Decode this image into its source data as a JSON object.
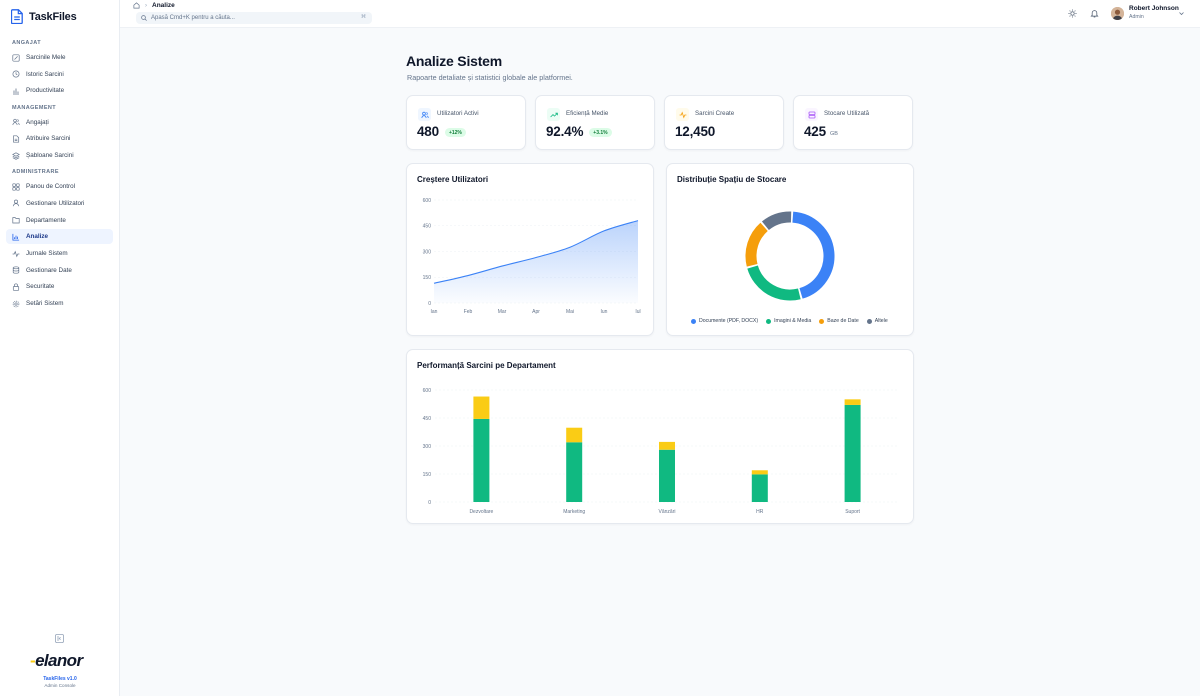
{
  "app": {
    "name": "TaskFiles",
    "version": "TaskFiles v1.0",
    "console": "Admin Console",
    "logo_text": "elanor"
  },
  "sidebar": {
    "sections": [
      {
        "title": "ANGAJAT",
        "items": [
          {
            "label": "Sarcinile Mele",
            "icon": "edit-square-icon"
          },
          {
            "label": "Istoric Sarcini",
            "icon": "history-icon"
          },
          {
            "label": "Productivitate",
            "icon": "bar-chart-icon"
          }
        ]
      },
      {
        "title": "MANAGEMENT",
        "items": [
          {
            "label": "Angajați",
            "icon": "users-icon"
          },
          {
            "label": "Atribuire Sarcini",
            "icon": "file-assign-icon"
          },
          {
            "label": "Șabloane Sarcini",
            "icon": "layers-icon"
          }
        ]
      },
      {
        "title": "ADMINISTRARE",
        "items": [
          {
            "label": "Panou de Control",
            "icon": "grid-icon"
          },
          {
            "label": "Gestionare Utilizatori",
            "icon": "user-icon"
          },
          {
            "label": "Departamente",
            "icon": "folder-icon"
          },
          {
            "label": "Analize",
            "icon": "analytics-icon",
            "active": true
          },
          {
            "label": "Jurnale Sistem",
            "icon": "activity-icon"
          },
          {
            "label": "Gestionare Date",
            "icon": "database-icon"
          },
          {
            "label": "Securitate",
            "icon": "lock-icon"
          },
          {
            "label": "Setări Sistem",
            "icon": "gear-icon"
          }
        ]
      }
    ]
  },
  "header": {
    "breadcrumb_current": "Analize",
    "search_placeholder": "Apasă Cmd+K pentru a căuta...",
    "search_shortcut": "⌘",
    "user_name": "Robert Johnson",
    "user_role": "Admin"
  },
  "page": {
    "title": "Analize Sistem",
    "subtitle": "Rapoarte detaliate și statistici globale ale platformei."
  },
  "stats": [
    {
      "label": "Utilizatori Activi",
      "value": "480",
      "badge": "+12%",
      "icon": "users-icon",
      "color": "#3b82f6",
      "bg": "#eff6ff"
    },
    {
      "label": "Eficiență Medie",
      "value": "92.4%",
      "badge": "+3.1%",
      "icon": "trending-up-icon",
      "color": "#10b981",
      "bg": "#ecfdf5"
    },
    {
      "label": "Sarcini Create",
      "value": "12,450",
      "icon": "activity-icon",
      "color": "#f59e0b",
      "bg": "#fffbeb"
    },
    {
      "label": "Stocare Utilizată",
      "value": "425",
      "unit": "GB",
      "icon": "database-icon",
      "color": "#a855f7",
      "bg": "#faf5ff"
    }
  ],
  "charts": {
    "growth_title": "Creștere Utilizatori",
    "storage_title": "Distribuție Spațiu de Stocare",
    "perf_title": "Performanță Sarcini pe Departament"
  },
  "chart_data": [
    {
      "type": "area",
      "title": "Creștere Utilizatori",
      "categories": [
        "Ian",
        "Feb",
        "Mar",
        "Apr",
        "Mai",
        "Iun",
        "Iul"
      ],
      "series": [
        {
          "values": [
            115,
            160,
            215,
            265,
            325,
            420,
            480
          ]
        }
      ],
      "ylim": [
        0,
        600
      ],
      "yticks": [
        0,
        150,
        300,
        450,
        600
      ],
      "grid": true,
      "color": "#3b82f6"
    },
    {
      "type": "pie",
      "title": "Distribuție Spațiu de Stocare",
      "labels": [
        "Documente (PDF, DOCX)",
        "Imagini & Media",
        "Baze de Date",
        "Altele"
      ],
      "values": [
        45,
        25,
        18,
        12
      ],
      "colors": [
        "#3b82f6",
        "#10b981",
        "#f59e0b",
        "#64748b"
      ],
      "legend": "bottom"
    },
    {
      "type": "bar",
      "title": "Performanță Sarcini pe Departament",
      "categories": [
        "Dezvoltare",
        "Marketing",
        "Vânzări",
        "HR",
        "Suport"
      ],
      "series": [
        {
          "values": [
            445,
            320,
            280,
            148,
            520
          ],
          "color": "#10b981"
        },
        {
          "values": [
            120,
            78,
            42,
            22,
            30
          ],
          "color": "#facc15"
        }
      ],
      "stacked": true,
      "ylim": [
        0,
        600
      ],
      "yticks": [
        0,
        150,
        300,
        450,
        600
      ],
      "grid": true
    }
  ]
}
